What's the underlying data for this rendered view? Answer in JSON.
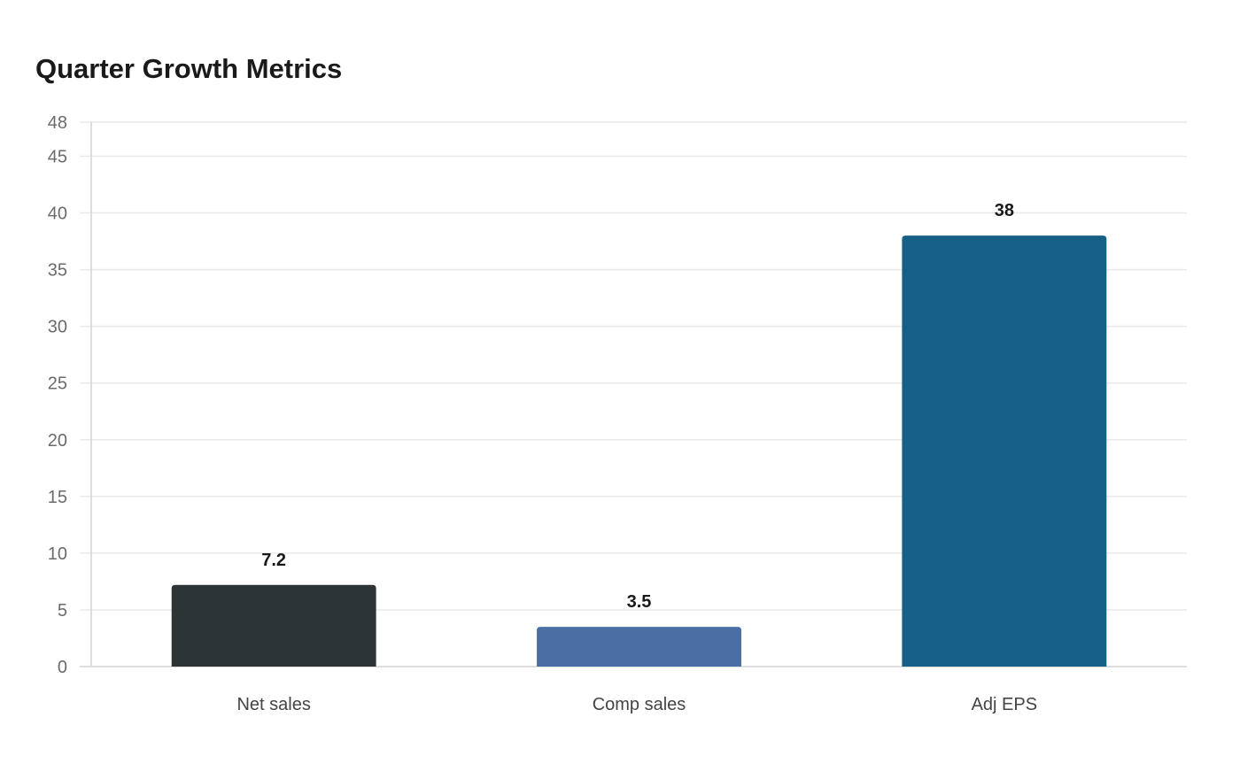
{
  "chart_data": {
    "type": "bar",
    "title": "Quarter Growth Metrics",
    "xlabel": "",
    "ylabel": "",
    "categories": [
      "Net sales",
      "Comp sales",
      "Adj EPS"
    ],
    "values": [
      7.2,
      3.5,
      38
    ],
    "value_labels": [
      "7.2",
      "3.5",
      "38"
    ],
    "colors": [
      "#2d3436",
      "#4a6fa5",
      "#166088"
    ],
    "ylim": [
      0,
      48
    ],
    "yticks": [
      0,
      5,
      10,
      15,
      20,
      25,
      30,
      35,
      40,
      45,
      48
    ],
    "grid": true,
    "legend": "none"
  }
}
